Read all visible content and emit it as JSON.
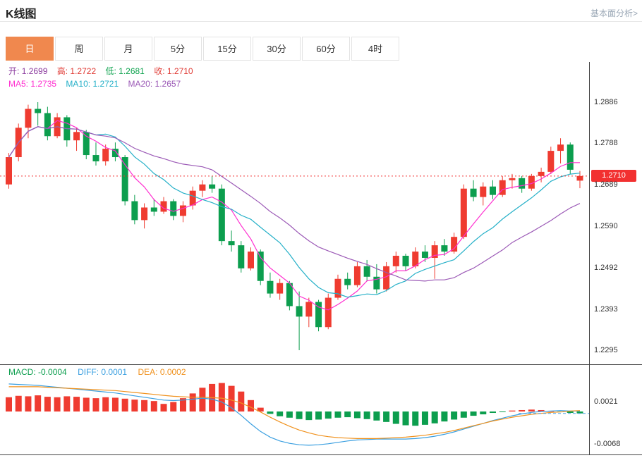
{
  "header": {
    "title": "K线图",
    "link": "基本面分析>"
  },
  "tabs": {
    "items": [
      "日",
      "周",
      "月",
      "5分",
      "15分",
      "30分",
      "60分",
      "4时"
    ],
    "active_index": 0
  },
  "legend": {
    "ohlc": [
      {
        "label": "开:",
        "value": "1.2699",
        "color": "#8b3a9e"
      },
      {
        "label": "高:",
        "value": "1.2722",
        "color": "#e03a34"
      },
      {
        "label": "低:",
        "value": "1.2681",
        "color": "#0fa34f"
      },
      {
        "label": "收:",
        "value": "1.2710",
        "color": "#e03a34"
      }
    ],
    "ma": [
      {
        "label": "MA5:",
        "value": "1.2735",
        "color": "#ff2fd0"
      },
      {
        "label": "MA10:",
        "value": "1.2721",
        "color": "#25b0c8"
      },
      {
        "label": "MA20:",
        "value": "1.2657",
        "color": "#9b59b6"
      }
    ]
  },
  "chart_data": [
    {
      "type": "candlestick",
      "title": "K线图 日线",
      "y_axis_labels": [
        "1.2886",
        "1.2788",
        "1.2689",
        "1.2590",
        "1.2492",
        "1.2393",
        "1.2295"
      ],
      "y_range": [
        1.227,
        1.2982
      ],
      "last_price": "1.2710",
      "last_price_value": 1.271,
      "up_color": "#ef3b30",
      "down_color": "#0c9e4e",
      "ma_periods": [
        5,
        10,
        20
      ],
      "ma_colors": [
        "#ff2fd0",
        "#25b0c8",
        "#9b59b6"
      ],
      "candles": [
        [
          1.269,
          1.2765,
          1.268,
          1.2755
        ],
        [
          1.2755,
          1.2835,
          1.2745,
          1.2825
        ],
        [
          1.2825,
          1.288,
          1.28,
          1.287
        ],
        [
          1.287,
          1.2886,
          1.283,
          1.286
        ],
        [
          1.286,
          1.2875,
          1.2795,
          1.2805
        ],
        [
          1.2805,
          1.286,
          1.28,
          1.285
        ],
        [
          1.285,
          1.2855,
          1.278,
          1.2795
        ],
        [
          1.2795,
          1.2825,
          1.277,
          1.2815
        ],
        [
          1.2815,
          1.282,
          1.275,
          1.276
        ],
        [
          1.276,
          1.279,
          1.2735,
          1.2745
        ],
        [
          1.2745,
          1.2785,
          1.2735,
          1.2775
        ],
        [
          1.2775,
          1.279,
          1.2745,
          1.2755
        ],
        [
          1.2755,
          1.276,
          1.264,
          1.265
        ],
        [
          1.265,
          1.2665,
          1.2595,
          1.2605
        ],
        [
          1.2605,
          1.2645,
          1.2585,
          1.2635
        ],
        [
          1.2635,
          1.2655,
          1.2615,
          1.2625
        ],
        [
          1.2625,
          1.266,
          1.262,
          1.265
        ],
        [
          1.265,
          1.2655,
          1.2605,
          1.2615
        ],
        [
          1.2615,
          1.265,
          1.26,
          1.264
        ],
        [
          1.264,
          1.2685,
          1.263,
          1.2675
        ],
        [
          1.2675,
          1.27,
          1.266,
          1.269
        ],
        [
          1.269,
          1.271,
          1.267,
          1.268
        ],
        [
          1.268,
          1.269,
          1.2545,
          1.2555
        ],
        [
          1.2555,
          1.258,
          1.253,
          1.2545
        ],
        [
          1.2545,
          1.2555,
          1.248,
          1.249
        ],
        [
          1.249,
          1.254,
          1.2485,
          1.253
        ],
        [
          1.253,
          1.2535,
          1.245,
          1.246
        ],
        [
          1.246,
          1.248,
          1.242,
          1.243
        ],
        [
          1.243,
          1.2465,
          1.2415,
          1.2455
        ],
        [
          1.2455,
          1.246,
          1.239,
          1.24
        ],
        [
          1.24,
          1.2435,
          1.2295,
          1.2375
        ],
        [
          1.2375,
          1.242,
          1.235,
          1.241
        ],
        [
          1.241,
          1.2415,
          1.234,
          1.235
        ],
        [
          1.235,
          1.243,
          1.2345,
          1.242
        ],
        [
          1.242,
          1.2475,
          1.2415,
          1.2465
        ],
        [
          1.2465,
          1.248,
          1.244,
          1.245
        ],
        [
          1.245,
          1.2505,
          1.2445,
          1.2495
        ],
        [
          1.2495,
          1.251,
          1.246,
          1.247
        ],
        [
          1.247,
          1.25,
          1.243,
          1.244
        ],
        [
          1.244,
          1.2505,
          1.2435,
          1.2495
        ],
        [
          1.2495,
          1.253,
          1.248,
          1.252
        ],
        [
          1.252,
          1.2525,
          1.2485,
          1.2495
        ],
        [
          1.2495,
          1.254,
          1.249,
          1.253
        ],
        [
          1.253,
          1.2545,
          1.2505,
          1.2515
        ],
        [
          1.2515,
          1.2555,
          1.2465,
          1.2545
        ],
        [
          1.2545,
          1.256,
          1.252,
          1.253
        ],
        [
          1.253,
          1.2575,
          1.2525,
          1.2565
        ],
        [
          1.2565,
          1.269,
          1.256,
          1.268
        ],
        [
          1.268,
          1.27,
          1.265,
          1.266
        ],
        [
          1.266,
          1.2695,
          1.264,
          1.2685
        ],
        [
          1.2685,
          1.27,
          1.2655,
          1.2665
        ],
        [
          1.2665,
          1.271,
          1.266,
          1.27
        ],
        [
          1.27,
          1.2715,
          1.268,
          1.2705
        ],
        [
          1.2705,
          1.271,
          1.267,
          1.268
        ],
        [
          1.268,
          1.2715,
          1.2675,
          1.271
        ],
        [
          1.271,
          1.273,
          1.2695,
          1.272
        ],
        [
          1.272,
          1.278,
          1.2715,
          1.277
        ],
        [
          1.277,
          1.28,
          1.274,
          1.2785
        ],
        [
          1.2785,
          1.279,
          1.2715,
          1.2725
        ],
        [
          1.2699,
          1.2722,
          1.2681,
          1.271
        ]
      ]
    },
    {
      "type": "bar",
      "title": "MACD",
      "legend": [
        {
          "label": "MACD:",
          "value": "-0.0004",
          "color": "#0c9e4e"
        },
        {
          "label": "DIFF:",
          "value": "0.0001",
          "color": "#3a9fe0"
        },
        {
          "label": "DEA:",
          "value": "0.0002",
          "color": "#f0921e"
        }
      ],
      "y_axis_labels": [
        "0.0021",
        "-0.0068"
      ],
      "current_level": -0.0004,
      "pos_color": "#ef3b30",
      "neg_color": "#0c9e4e",
      "diff_color": "#3a9fe0",
      "dea_color": "#f0921e",
      "histogram": [
        0.003,
        0.0033,
        0.0032,
        0.0034,
        0.0031,
        0.003,
        0.0032,
        0.0031,
        0.0029,
        0.0028,
        0.003,
        0.0029,
        0.0027,
        0.0025,
        0.0024,
        0.0022,
        0.0016,
        0.002,
        0.0028,
        0.0038,
        0.005,
        0.0058,
        0.006,
        0.0054,
        0.0042,
        0.0024,
        0.0008,
        -0.0005,
        -0.001,
        -0.0013,
        -0.0016,
        -0.0018,
        -0.0017,
        -0.0015,
        -0.0013,
        -0.0012,
        -0.0014,
        -0.0016,
        -0.0019,
        -0.0022,
        -0.0026,
        -0.0029,
        -0.003,
        -0.0028,
        -0.0025,
        -0.0021,
        -0.0017,
        -0.0013,
        -0.0009,
        -0.0006,
        -0.0003,
        -0.0001,
        0.0002,
        0.0003,
        0.0004,
        0.0003,
        0.0001,
        -0.0001,
        -0.0003,
        -0.0004
      ],
      "diff": [
        0.0058,
        0.0057,
        0.0056,
        0.0055,
        0.0053,
        0.0051,
        0.0049,
        0.0047,
        0.0045,
        0.0043,
        0.0041,
        0.0039,
        0.0036,
        0.0033,
        0.003,
        0.0027,
        0.0024,
        0.0023,
        0.0024,
        0.0026,
        0.0028,
        0.0026,
        0.002,
        0.0008,
        -0.0008,
        -0.0026,
        -0.0042,
        -0.0054,
        -0.0062,
        -0.0067,
        -0.007,
        -0.0071,
        -0.007,
        -0.0068,
        -0.0065,
        -0.0062,
        -0.006,
        -0.0059,
        -0.0058,
        -0.0058,
        -0.0058,
        -0.0058,
        -0.0057,
        -0.0055,
        -0.0052,
        -0.0048,
        -0.0043,
        -0.0037,
        -0.0031,
        -0.0025,
        -0.0019,
        -0.0014,
        -0.0009,
        -0.0005,
        -0.0002,
        0.0,
        0.0001,
        0.0002,
        0.0001,
        0.0001
      ],
      "dea": [
        0.0052,
        0.0052,
        0.0052,
        0.0052,
        0.0051,
        0.005,
        0.0049,
        0.0048,
        0.0047,
        0.0046,
        0.0045,
        0.0044,
        0.0042,
        0.004,
        0.0038,
        0.0036,
        0.0034,
        0.0032,
        0.0031,
        0.003,
        0.003,
        0.0029,
        0.0028,
        0.0024,
        0.0018,
        0.0009,
        -0.0001,
        -0.0012,
        -0.0022,
        -0.0031,
        -0.0039,
        -0.0045,
        -0.005,
        -0.0053,
        -0.0055,
        -0.0056,
        -0.0057,
        -0.0057,
        -0.0057,
        -0.0056,
        -0.0055,
        -0.0054,
        -0.0052,
        -0.005,
        -0.0047,
        -0.0044,
        -0.004,
        -0.0035,
        -0.003,
        -0.0025,
        -0.002,
        -0.0016,
        -0.0012,
        -0.0009,
        -0.0006,
        -0.0004,
        -0.0002,
        -0.0001,
        0.0001,
        0.0002
      ]
    }
  ]
}
